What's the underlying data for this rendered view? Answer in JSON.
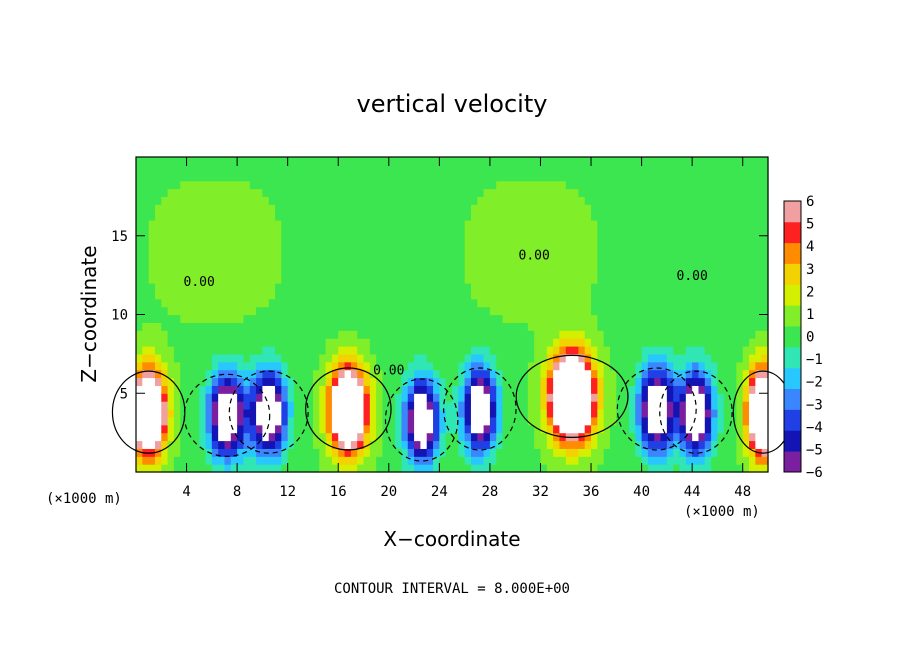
{
  "chart_data": {
    "type": "heatmap",
    "title": "vertical velocity",
    "xlabel": "X−coordinate",
    "ylabel": "Z−coordinate",
    "x_unit": "(×1000 m)",
    "y_unit": "(×1000 m)",
    "xlim": [
      0,
      50
    ],
    "ylim": [
      0,
      20
    ],
    "x_ticks": [
      4,
      8,
      12,
      16,
      20,
      24,
      28,
      32,
      36,
      40,
      44,
      48
    ],
    "y_ticks": [
      5,
      10,
      15
    ],
    "contour_interval_text": "CONTOUR INTERVAL = 8.000E+00",
    "contour_label": "0.00",
    "colorbar": {
      "levels": [
        -6,
        -5,
        -4,
        -3,
        -2,
        -1,
        0,
        1,
        2,
        3,
        4,
        5,
        6
      ],
      "labels": [
        "−6",
        "−5",
        "−4",
        "−3",
        "−2",
        "−1",
        "0",
        "1",
        "2",
        "3",
        "4",
        "5",
        "6"
      ],
      "colors": [
        "#7a1fa0",
        "#1414b4",
        "#2040e6",
        "#3a86ff",
        "#28c8ff",
        "#30e6b4",
        "#3ce650",
        "#80ee28",
        "#d4f000",
        "#f2d200",
        "#ff8c00",
        "#ff2020",
        "#f0a0a0"
      ],
      "over_color": "#ffffff"
    },
    "cells": [
      {
        "x": 1.0,
        "z": 3.8,
        "w": 0.55,
        "amp": 14
      },
      {
        "x": 7.2,
        "z": 3.6,
        "w": 0.65,
        "amp": -10
      },
      {
        "x": 10.5,
        "z": 3.8,
        "w": 0.6,
        "amp": -10
      },
      {
        "x": 16.8,
        "z": 4.0,
        "w": 0.65,
        "amp": 14
      },
      {
        "x": 22.6,
        "z": 3.3,
        "w": 0.55,
        "amp": -10
      },
      {
        "x": 27.2,
        "z": 4.0,
        "w": 0.55,
        "amp": -10
      },
      {
        "x": 34.5,
        "z": 4.8,
        "w": 0.85,
        "amp": 16
      },
      {
        "x": 41.2,
        "z": 4.0,
        "w": 0.6,
        "amp": -10
      },
      {
        "x": 44.3,
        "z": 3.8,
        "w": 0.55,
        "amp": -10
      },
      {
        "x": 49.6,
        "z": 3.8,
        "w": 0.45,
        "amp": 14
      }
    ]
  }
}
